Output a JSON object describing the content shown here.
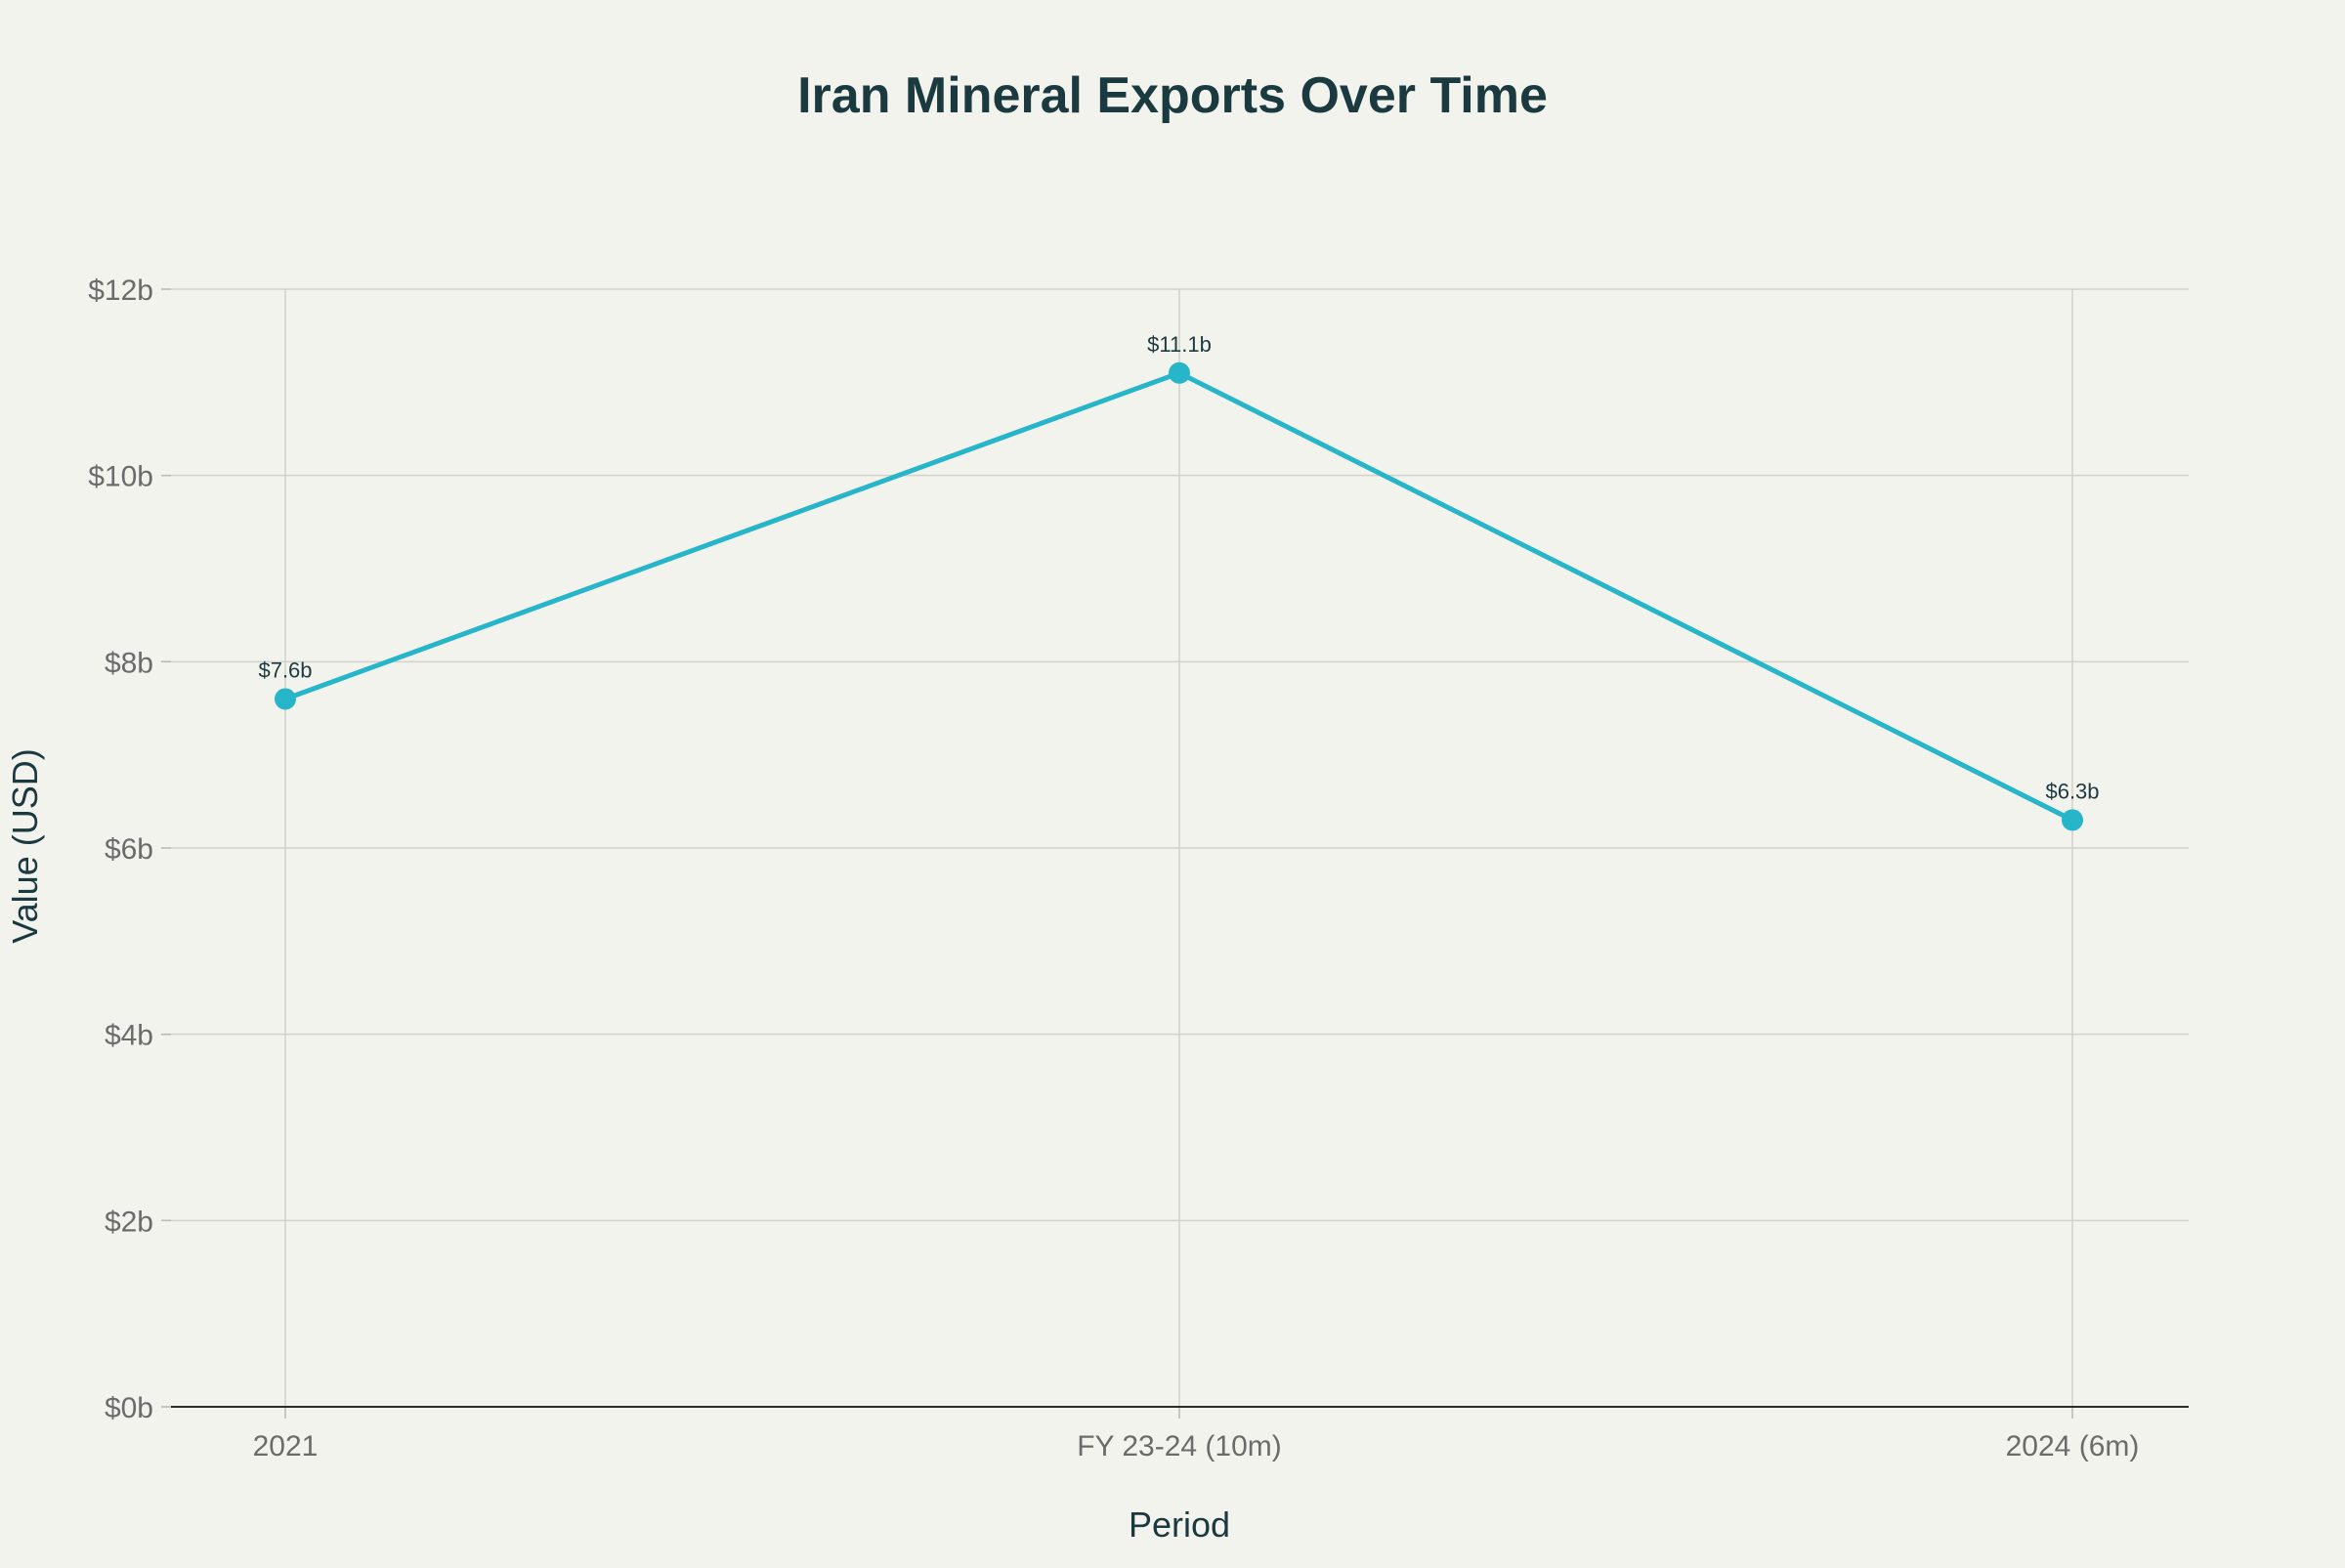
{
  "chart_data": {
    "type": "line",
    "title": "Iran Mineral Exports Over Time",
    "xlabel": "Period",
    "ylabel": "Value (USD)",
    "categories": [
      "2021",
      "FY 23-24 (10m)",
      "2024 (6m)"
    ],
    "series": [
      {
        "values": [
          7.6,
          11.1,
          6.3
        ],
        "data_labels": [
          "$7.6b",
          "$11.1b",
          "$6.3b"
        ],
        "color": "#27b5c9"
      }
    ],
    "ylim": [
      0,
      12
    ],
    "yticks": [
      0,
      2,
      4,
      6,
      8,
      10,
      12
    ],
    "ytick_labels": [
      "$0b",
      "$2b",
      "$4b",
      "$6b",
      "$8b",
      "$10b",
      "$12b"
    ],
    "grid": true,
    "legend": "none"
  }
}
